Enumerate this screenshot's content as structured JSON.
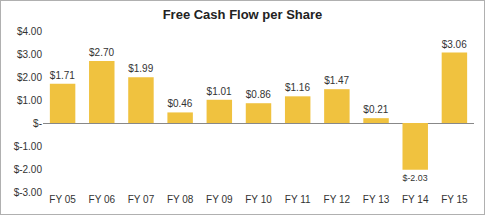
{
  "chart_data": {
    "type": "bar",
    "title": "Free Cash Flow per Share",
    "categories": [
      "FY 05",
      "FY 06",
      "FY 07",
      "FY 08",
      "FY 09",
      "FY 10",
      "FY 11",
      "FY 12",
      "FY 13",
      "FY 14",
      "FY 15"
    ],
    "values": [
      1.71,
      2.7,
      1.99,
      0.46,
      1.01,
      0.86,
      1.16,
      1.47,
      0.21,
      -2.03,
      3.06
    ],
    "value_labels": [
      "$1.71",
      "$2.70",
      "$1.99",
      "$0.46",
      "$1.01",
      "$0.86",
      "$1.16",
      "$1.47",
      "$0.21",
      "$-2.03",
      "$3.06"
    ],
    "color": "#f0c23f",
    "ylim": [
      -3,
      4
    ],
    "yticks": [
      {
        "value": -3,
        "label": "$-3.00"
      },
      {
        "value": -2,
        "label": "$-2.00"
      },
      {
        "value": -1,
        "label": "$-1.00"
      },
      {
        "value": 0,
        "label": "$-"
      },
      {
        "value": 1,
        "label": "$1.00"
      },
      {
        "value": 2,
        "label": "$2.00"
      },
      {
        "value": 3,
        "label": "$3.00"
      },
      {
        "value": 4,
        "label": "$4.00"
      }
    ],
    "grid": false,
    "data_labels": true
  }
}
